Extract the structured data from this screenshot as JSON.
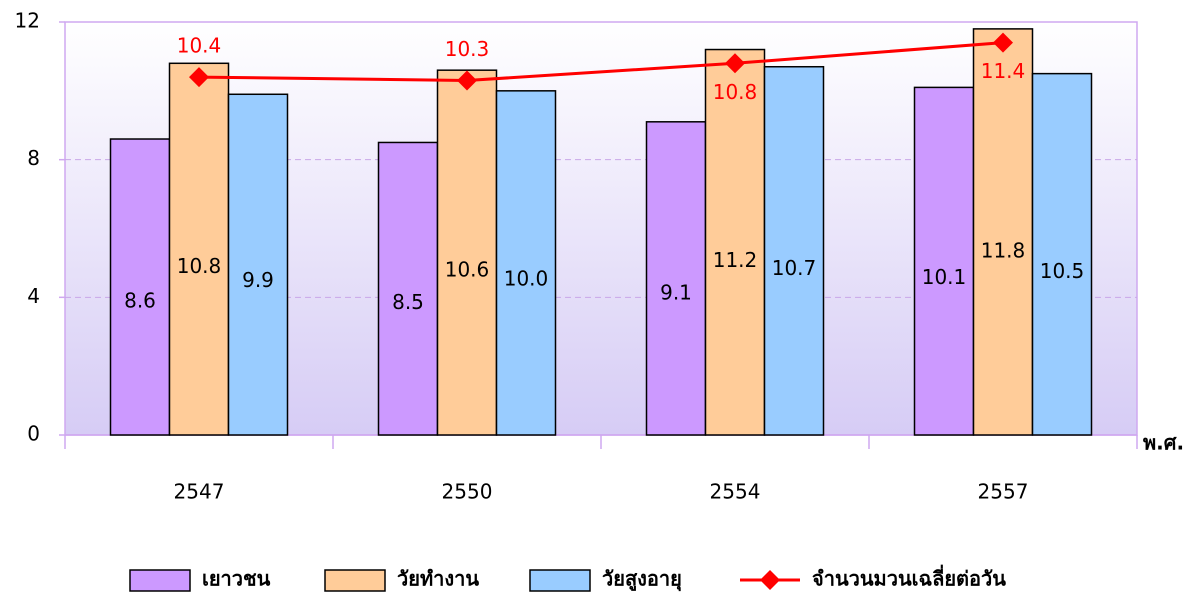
{
  "chart_data": {
    "type": "bar",
    "categories": [
      "2547",
      "2550",
      "2554",
      "2557"
    ],
    "x_label": "พ.ศ.",
    "series": [
      {
        "name": "เยาวชน",
        "color": "#cc99ff",
        "values": [
          8.6,
          8.5,
          9.1,
          10.1
        ]
      },
      {
        "name": "วัยทำงาน",
        "color": "#ffcc99",
        "values": [
          10.8,
          10.6,
          11.2,
          11.8
        ]
      },
      {
        "name": "วัยสูงอายุ",
        "color": "#99ccff",
        "values": [
          9.9,
          10.0,
          10.7,
          10.5
        ],
        "value_labels": [
          "9.9",
          "10.0",
          "10.7",
          "10.5"
        ]
      },
      {
        "name": "จำนวนมวนเฉลี่ยต่อวัน",
        "type": "line",
        "color": "#ff0000",
        "values": [
          10.4,
          10.3,
          10.8,
          11.4
        ]
      }
    ],
    "ylim": [
      0,
      12
    ],
    "yticks": [
      0,
      4,
      8,
      12
    ],
    "grid": true,
    "legend": "bottom"
  }
}
